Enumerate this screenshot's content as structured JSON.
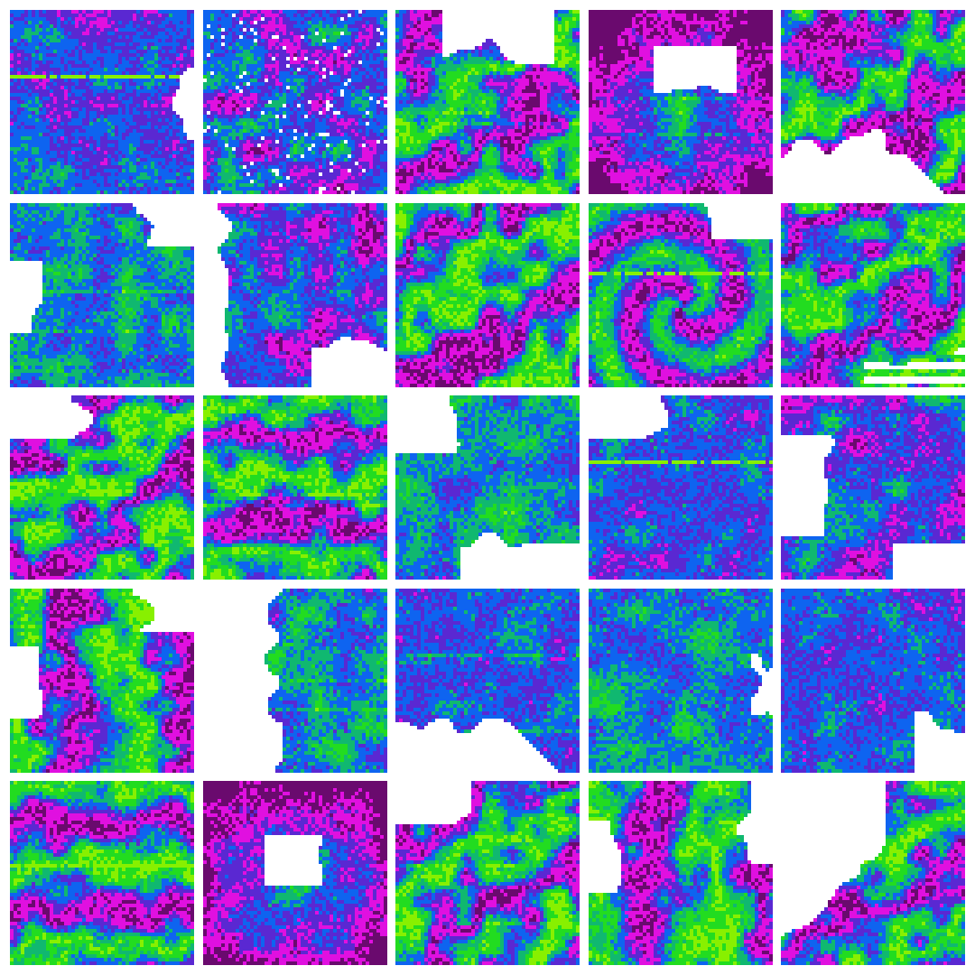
{
  "grid": {
    "rows": 5,
    "cols": 5
  },
  "palette": {
    "white": "#ffffff",
    "dark_purple": "#6a0a6e",
    "magenta": "#e010e0",
    "indigo": "#5a28d2",
    "blue": "#0e64f0",
    "teal_green": "#10b870",
    "green": "#22dc20",
    "lime": "#88f000"
  },
  "tiles": [
    {
      "id": "r1c1",
      "style": "blue-dominant",
      "white": "right-edge",
      "streak": "horizontal-lime"
    },
    {
      "id": "r1c2",
      "style": "magenta-mix",
      "white": "scattered",
      "streak": "none"
    },
    {
      "id": "r1c3",
      "style": "diagonal-bands",
      "white": "top",
      "streak": "horizontal"
    },
    {
      "id": "r1c4",
      "style": "blob",
      "white": "top-center",
      "streak": "horizontal"
    },
    {
      "id": "r1c5",
      "style": "diagonal-bands",
      "white": "bottom-left",
      "streak": "none"
    },
    {
      "id": "r2c1",
      "style": "green-mix",
      "white": "top-right-left",
      "streak": "horizontal"
    },
    {
      "id": "r2c2",
      "style": "magenta-mix",
      "white": "left-bottom-right",
      "streak": "none"
    },
    {
      "id": "r2c3",
      "style": "diagonal-bands",
      "white": "none",
      "streak": "none"
    },
    {
      "id": "r2c4",
      "style": "swirl",
      "white": "top-right",
      "streak": "horizontal-lime"
    },
    {
      "id": "r2c5",
      "style": "diagonal-bands",
      "white": "bottom-right-streaks",
      "streak": "none"
    },
    {
      "id": "r3c1",
      "style": "diagonal-bands",
      "white": "top-left",
      "streak": "none"
    },
    {
      "id": "r3c2",
      "style": "horizontal-bands",
      "white": "none",
      "streak": "horizontal"
    },
    {
      "id": "r3c3",
      "style": "green-mix",
      "white": "top-left-bottom-right",
      "streak": "none"
    },
    {
      "id": "r3c4",
      "style": "blue-dominant",
      "white": "top-left",
      "streak": "horizontal-lime"
    },
    {
      "id": "r3c5",
      "style": "magenta-mix",
      "white": "left-bottom",
      "streak": "none"
    },
    {
      "id": "r4c1",
      "style": "vertical-green",
      "white": "top-right-left",
      "streak": "none"
    },
    {
      "id": "r4c2",
      "style": "green-mix",
      "white": "left",
      "streak": "horizontal"
    },
    {
      "id": "r4c3",
      "style": "blue-dominant",
      "white": "bottom-left",
      "streak": "horizontal"
    },
    {
      "id": "r4c4",
      "style": "green-mix",
      "white": "right-edge",
      "streak": "none"
    },
    {
      "id": "r4c5",
      "style": "blue-dominant",
      "white": "bottom-right",
      "streak": "none"
    },
    {
      "id": "r5c1",
      "style": "horizontal-bands",
      "white": "none",
      "streak": "horizontal-lime"
    },
    {
      "id": "r5c2",
      "style": "blob",
      "white": "center-left",
      "streak": "none"
    },
    {
      "id": "r5c3",
      "style": "diagonal-bands",
      "white": "top-left",
      "streak": "horizontal"
    },
    {
      "id": "r5c4",
      "style": "vertical-green",
      "white": "left-right",
      "streak": "none"
    },
    {
      "id": "r5c5",
      "style": "diagonal-bands",
      "white": "top-left-diagonal",
      "streak": "none"
    }
  ]
}
